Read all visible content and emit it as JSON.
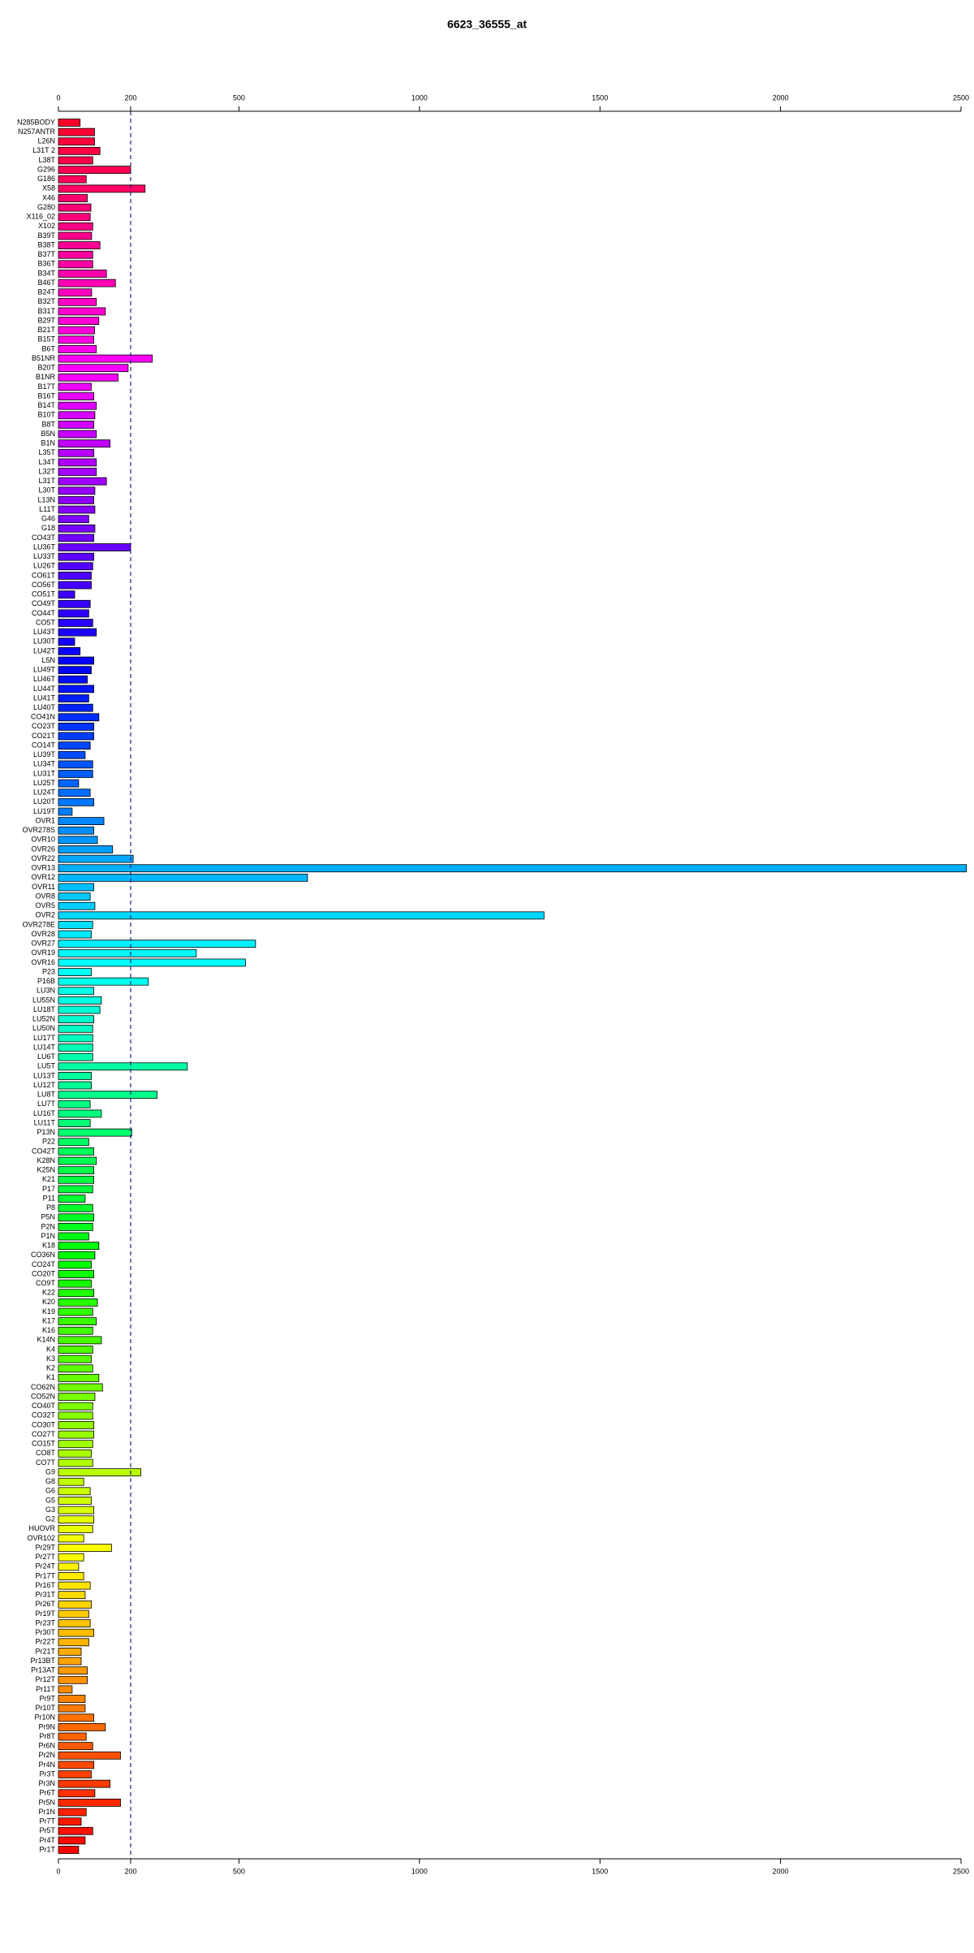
{
  "chart_data": {
    "type": "hbar",
    "title": "6623_36555_at",
    "categories": [
      "N285BODY",
      "N257ANTR",
      "L26N",
      "L31T 2",
      "L38T",
      "G296",
      "G186",
      "X58",
      "X46",
      "G280",
      "X116_02",
      "X102",
      "B39T",
      "B38T",
      "B37T",
      "B36T",
      "B34T",
      "B46T",
      "B24T",
      "B32T",
      "B31T",
      "B29T",
      "B21T",
      "B15T",
      "B6T",
      "B51NR",
      "B20T",
      "B1NR",
      "B17T",
      "B16T",
      "B14T",
      "B10T",
      "B8T",
      "B5N",
      "B1N",
      "L35T",
      "L34T",
      "L32T",
      "L31T",
      "L30T",
      "L13N",
      "L11T",
      "G46",
      "G18",
      "CO43T",
      "LU36T",
      "LU33T",
      "LU26T",
      "CO61T",
      "CO56T",
      "CO51T",
      "CO49T",
      "CO44T",
      "CO5T",
      "LU43T",
      "LU30T",
      "LU42T",
      "L5N",
      "LU49T",
      "LU46T",
      "LU44T",
      "LU41T",
      "LU40T",
      "CO41N",
      "CO23T",
      "CO21T",
      "CO14T",
      "LU39T",
      "LU34T",
      "LU31T",
      "LU25T",
      "LU24T",
      "LU20T",
      "LU19T",
      "OVR1",
      "OVR278S",
      "OVR10",
      "OVR26",
      "OVR22",
      "OVR13",
      "OVR12",
      "OVR11",
      "OVR8",
      "OVR5",
      "OVR2",
      "OVR278E",
      "OVR28",
      "OVR27",
      "OVR19",
      "OVR16",
      "P23",
      "P16B",
      "LU3N",
      "LU55N",
      "LU18T",
      "LU52N",
      "LU50N",
      "LU17T",
      "LU14T",
      "LU6T",
      "LU5T",
      "LU13T",
      "LU12T",
      "LU8T",
      "LU7T",
      "LU16T",
      "LU11T",
      "P13N",
      "P22",
      "CO42T",
      "K28N",
      "K25N",
      "K21",
      "P17",
      "P11",
      "P8",
      "P5N",
      "P2N",
      "P1N",
      "K18",
      "CO36N",
      "CO24T",
      "CO20T",
      "CO9T",
      "K22",
      "K20",
      "K19",
      "K17",
      "K16",
      "K14N",
      "K4",
      "K3",
      "K2",
      "K1",
      "CO62N",
      "CO52N",
      "CO40T",
      "CO32T",
      "CO30T",
      "CO27T",
      "CO15T",
      "CO8T",
      "CO7T",
      "G9",
      "G8",
      "G6",
      "G5",
      "G3",
      "G2",
      "HUOVR",
      "OVR102",
      "Pr29T",
      "Pr27T",
      "Pr24T",
      "Pr17T",
      "Pr16T",
      "Pr31T",
      "Pr26T",
      "Pr19T",
      "Pr23T",
      "Pr30T",
      "Pr22T",
      "Pr21T",
      "Pr13BT",
      "Pr13AT",
      "Pr12T",
      "Pr11T",
      "Pr9T",
      "Pr10T",
      "Pr10N",
      "Pr9N",
      "Pr8T",
      "Pr6N",
      "Pr2N",
      "Pr4N",
      "Pr3T",
      "Pr3N",
      "Pr6T",
      "Pr5N",
      "Pr1N",
      "Pr7T",
      "Pr5T",
      "Pr4T",
      "Pr1T"
    ],
    "values": [
      60,
      100,
      100,
      115,
      95,
      200,
      77,
      240,
      80,
      90,
      88,
      95,
      92,
      115,
      95,
      95,
      133,
      158,
      92,
      105,
      130,
      112,
      100,
      98,
      105,
      260,
      193,
      165,
      91,
      98,
      105,
      101,
      98,
      105,
      143,
      98,
      105,
      105,
      133,
      101,
      98,
      101,
      84,
      101,
      98,
      200,
      98,
      95,
      91,
      91,
      45,
      88,
      84,
      95,
      105,
      45,
      60,
      98,
      91,
      80,
      98,
      84,
      95,
      112,
      98,
      98,
      88,
      74,
      95,
      95,
      56,
      88,
      98,
      38,
      126,
      98,
      108,
      150,
      207,
      2515,
      690,
      98,
      88,
      101,
      1345,
      95,
      91,
      546,
      382,
      518,
      91,
      249,
      98,
      119,
      115,
      98,
      95,
      95,
      95,
      95,
      357,
      91,
      91,
      273,
      88,
      119,
      88,
      203,
      84,
      98,
      105,
      98,
      98,
      95,
      74,
      95,
      98,
      95,
      84,
      112,
      101,
      91,
      98,
      91,
      98,
      108,
      95,
      105,
      95,
      119,
      95,
      91,
      95,
      112,
      122,
      101,
      95,
      95,
      98,
      98,
      95,
      91,
      95,
      228,
      70,
      88,
      91,
      98,
      98,
      95,
      70,
      147,
      70,
      56,
      70,
      88,
      74,
      91,
      84,
      88,
      98,
      84,
      63,
      63,
      80,
      80,
      38,
      74,
      74,
      98,
      130,
      77,
      95,
      172,
      98,
      91,
      143,
      101,
      172,
      77,
      63,
      95,
      74,
      56
    ],
    "bar_hues": [
      350,
      0
    ],
    "xlim": [
      0,
      2500
    ],
    "xticks": [
      0,
      200,
      500,
      1000,
      1500,
      2000,
      2500
    ],
    "reference_line": 200,
    "reference_color": "#1a237e"
  }
}
